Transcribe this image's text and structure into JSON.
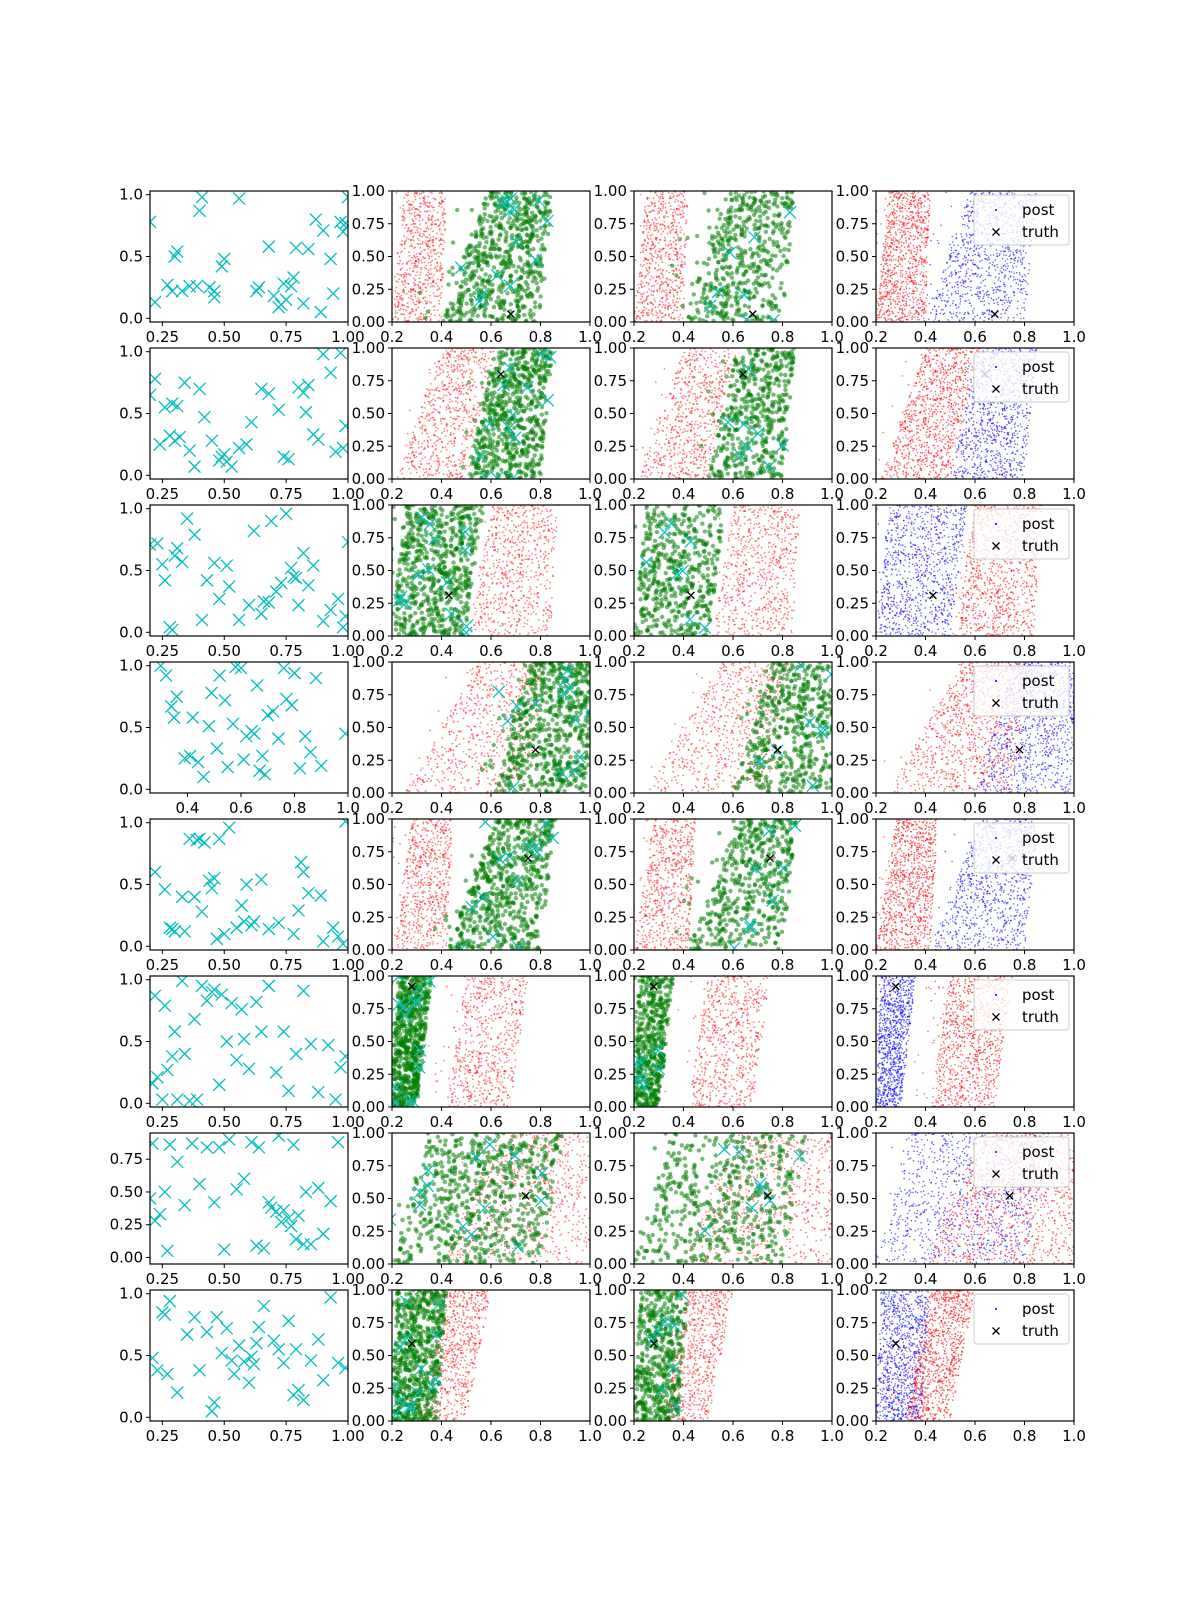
{
  "colors": {
    "cyan": "#00bfbf",
    "green": "#008000",
    "red": "#ff0000",
    "blue": "#0000ff",
    "black": "#000000"
  },
  "legend": {
    "post": "post",
    "truth": "truth"
  },
  "chart_data": {
    "type": "scatter",
    "grid": false,
    "rows": [
      {
        "truth": [
          0.68,
          0.06
        ],
        "samples_x": [
          0.2,
          0.22,
          0.27,
          0.29,
          0.3,
          0.31,
          0.33,
          0.36,
          0.39,
          0.4,
          0.41,
          0.44,
          0.46,
          0.46,
          0.49,
          0.5,
          0.56,
          0.63,
          0.64,
          0.68,
          0.7,
          0.72,
          0.73,
          0.74,
          0.75,
          0.77,
          0.78,
          0.79,
          0.82,
          0.84,
          0.87,
          0.89,
          0.9,
          0.93,
          0.94,
          0.97,
          0.98,
          0.99,
          1.0,
          1.0
        ],
        "samples_y": [
          0.78,
          0.13,
          0.27,
          0.22,
          0.5,
          0.54,
          0.22,
          0.26,
          0.26,
          0.87,
          0.98,
          0.25,
          0.17,
          0.22,
          0.42,
          0.48,
          0.97,
          0.22,
          0.25,
          0.58,
          0.18,
          0.09,
          0.11,
          0.28,
          0.15,
          0.26,
          0.33,
          0.57,
          0.12,
          0.56,
          0.8,
          0.05,
          0.71,
          0.48,
          0.2,
          0.78,
          0.7,
          0.77,
          0.75,
          0.98
        ],
        "band_red": {
          "lo": [
            0.2,
            0.25
          ],
          "hi": [
            0.4,
            0.42
          ],
          "shift": 0.12
        },
        "band_green": {
          "lo": [
            0.4,
            0.58
          ],
          "hi": [
            0.8,
            0.85
          ],
          "shift": 0.15
        },
        "xlim_c1": [
          0.2,
          1.0
        ],
        "xticks_c1": [
          0.25,
          0.5,
          0.75,
          1.0
        ],
        "xticklabels_c1": [
          "0.25",
          "0.50",
          "0.75",
          "1.00"
        ],
        "ylim_c1": [
          -0.03,
          1.03
        ],
        "yticks_c1": [
          0.0,
          0.5,
          1.0
        ],
        "yticklabels_c1": [
          "0.0",
          "0.5",
          "1.0"
        ]
      },
      {
        "truth": [
          0.64,
          0.8
        ],
        "samples_x": [
          0.2,
          0.22,
          0.24,
          0.26,
          0.28,
          0.29,
          0.3,
          0.31,
          0.32,
          0.34,
          0.36,
          0.38,
          0.4,
          0.42,
          0.45,
          0.48,
          0.49,
          0.5,
          0.51,
          0.53,
          0.56,
          0.59,
          0.61,
          0.65,
          0.68,
          0.72,
          0.74,
          0.76,
          0.8,
          0.82,
          0.83,
          0.84,
          0.86,
          0.88,
          0.9,
          0.93,
          0.95,
          0.97,
          0.98,
          0.99
        ],
        "samples_y": [
          0.65,
          0.78,
          0.25,
          0.55,
          0.32,
          0.58,
          0.28,
          0.56,
          0.31,
          0.75,
          0.2,
          0.07,
          0.7,
          0.47,
          0.28,
          0.12,
          0.15,
          0.17,
          0.11,
          0.07,
          0.22,
          0.25,
          0.43,
          0.7,
          0.66,
          0.53,
          0.15,
          0.13,
          0.71,
          0.67,
          0.51,
          0.73,
          0.33,
          0.29,
          0.98,
          0.83,
          0.19,
          0.99,
          0.22,
          0.4
        ],
        "band_red": {
          "lo": [
            0.22,
            0.4
          ],
          "hi": [
            0.5,
            0.62
          ],
          "shift": 0.08
        },
        "band_green": {
          "lo": [
            0.5,
            0.62
          ],
          "hi": [
            0.8,
            0.85
          ],
          "shift": 0.1
        },
        "xlim_c1": [
          0.2,
          1.0
        ],
        "xticks_c1": [
          0.25,
          0.5,
          0.75,
          1.0
        ],
        "xticklabels_c1": [
          "0.25",
          "0.50",
          "0.75",
          "1.00"
        ],
        "ylim_c1": [
          -0.03,
          1.03
        ],
        "yticks_c1": [
          0.0,
          0.5,
          1.0
        ],
        "yticklabels_c1": [
          "0.0",
          "0.5",
          "1.0"
        ]
      },
      {
        "truth": [
          0.43,
          0.31
        ],
        "samples_x": [
          0.2,
          0.23,
          0.25,
          0.26,
          0.28,
          0.29,
          0.3,
          0.31,
          0.33,
          0.35,
          0.38,
          0.41,
          0.43,
          0.46,
          0.48,
          0.51,
          0.52,
          0.56,
          0.6,
          0.62,
          0.65,
          0.66,
          0.68,
          0.69,
          0.71,
          0.73,
          0.75,
          0.77,
          0.78,
          0.79,
          0.8,
          0.82,
          0.84,
          0.86,
          0.9,
          0.93,
          0.96,
          0.98,
          0.99,
          1.0
        ],
        "samples_y": [
          0.71,
          0.72,
          0.55,
          0.42,
          0.04,
          0.02,
          0.62,
          0.68,
          0.57,
          0.92,
          0.79,
          0.1,
          0.42,
          0.56,
          0.27,
          0.54,
          0.37,
          0.1,
          0.22,
          0.82,
          0.15,
          0.25,
          0.24,
          0.9,
          0.33,
          0.4,
          0.96,
          0.52,
          0.45,
          0.44,
          0.22,
          0.64,
          0.38,
          0.54,
          0.09,
          0.18,
          0.27,
          0.04,
          0.13,
          0.73
        ],
        "band_red": {
          "lo": [
            0.52,
            0.6
          ],
          "hi": [
            0.84,
            0.87
          ],
          "shift": 0.12
        },
        "band_green": {
          "lo": [
            0.2,
            0.25
          ],
          "hi": [
            0.5,
            0.57
          ],
          "shift": 0.12
        },
        "xlim_c1": [
          0.2,
          1.0
        ],
        "xticks_c1": [
          0.25,
          0.5,
          0.75,
          1.0
        ],
        "xticklabels_c1": [
          "0.25",
          "0.50",
          "0.75",
          "1.00"
        ],
        "ylim_c1": [
          -0.03,
          1.03
        ],
        "yticks_c1": [
          0.0,
          0.5,
          1.0
        ],
        "yticklabels_c1": [
          "0.0",
          "0.5",
          "1.0"
        ]
      },
      {
        "truth": [
          0.78,
          0.33
        ],
        "samples_x": [
          0.3,
          0.32,
          0.34,
          0.35,
          0.36,
          0.39,
          0.41,
          0.42,
          0.44,
          0.46,
          0.48,
          0.49,
          0.51,
          0.52,
          0.54,
          0.55,
          0.57,
          0.58,
          0.6,
          0.61,
          0.62,
          0.64,
          0.65,
          0.66,
          0.67,
          0.68,
          0.69,
          0.7,
          0.72,
          0.74,
          0.76,
          0.77,
          0.79,
          0.8,
          0.82,
          0.84,
          0.86,
          0.88,
          0.9,
          0.99
        ],
        "samples_y": [
          1.0,
          0.92,
          0.67,
          0.58,
          0.75,
          0.25,
          0.27,
          0.58,
          0.22,
          0.1,
          0.51,
          0.78,
          0.33,
          0.92,
          0.72,
          0.18,
          0.53,
          0.99,
          0.98,
          0.24,
          0.43,
          0.47,
          0.45,
          0.84,
          0.15,
          0.27,
          0.12,
          0.6,
          0.63,
          0.41,
          0.98,
          0.73,
          0.68,
          0.94,
          0.17,
          0.43,
          0.3,
          0.9,
          0.19,
          0.45
        ],
        "band_red": {
          "lo": [
            0.25,
            0.55
          ],
          "hi": [
            0.75,
            0.82
          ],
          "shift": 0.1
        },
        "band_green": {
          "lo": [
            0.6,
            0.76
          ],
          "hi": [
            1.0,
            1.0
          ],
          "shift": 0.1
        },
        "xlim_c1": [
          0.26,
          1.0
        ],
        "xticks_c1": [
          0.4,
          0.6,
          0.8,
          1.0
        ],
        "xticklabels_c1": [
          "0.4",
          "0.6",
          "0.8",
          "1.0"
        ],
        "ylim_c1": [
          -0.03,
          1.03
        ],
        "yticks_c1": [
          0.0,
          0.5,
          1.0
        ],
        "yticklabels_c1": [
          "0.0",
          "0.5",
          "1.0"
        ]
      },
      {
        "truth": [
          0.75,
          0.7
        ],
        "samples_x": [
          0.22,
          0.26,
          0.28,
          0.29,
          0.3,
          0.33,
          0.34,
          0.36,
          0.38,
          0.39,
          0.4,
          0.41,
          0.42,
          0.44,
          0.45,
          0.46,
          0.47,
          0.48,
          0.5,
          0.52,
          0.55,
          0.57,
          0.58,
          0.59,
          0.61,
          0.62,
          0.65,
          0.68,
          0.72,
          0.78,
          0.8,
          0.81,
          0.82,
          0.84,
          0.89,
          0.9,
          0.94,
          0.96,
          0.98,
          0.99
        ],
        "samples_y": [
          0.6,
          0.46,
          0.15,
          0.14,
          0.12,
          0.4,
          0.12,
          0.87,
          0.4,
          0.86,
          0.87,
          0.28,
          0.84,
          0.53,
          0.47,
          0.55,
          0.06,
          0.87,
          0.1,
          0.96,
          0.15,
          0.33,
          0.2,
          0.5,
          0.17,
          0.2,
          0.54,
          0.14,
          0.19,
          0.1,
          0.29,
          0.68,
          0.6,
          0.43,
          0.41,
          0.04,
          0.15,
          0.08,
          0.02,
          1.01
        ],
        "band_red": {
          "lo": [
            0.2,
            0.28
          ],
          "hi": [
            0.42,
            0.45
          ],
          "shift": 0.12
        },
        "band_green": {
          "lo": [
            0.42,
            0.62
          ],
          "hi": [
            0.8,
            0.86
          ],
          "shift": 0.12
        },
        "xlim_c1": [
          0.2,
          1.0
        ],
        "xticks_c1": [
          0.25,
          0.5,
          0.75,
          1.0
        ],
        "xticklabels_c1": [
          "0.25",
          "0.50",
          "0.75",
          "1.00"
        ],
        "ylim_c1": [
          -0.03,
          1.03
        ],
        "yticks_c1": [
          0.0,
          0.5,
          1.0
        ],
        "yticklabels_c1": [
          "0.0",
          "0.5",
          "1.0"
        ]
      },
      {
        "truth": [
          0.28,
          0.92
        ],
        "samples_x": [
          0.21,
          0.22,
          0.23,
          0.25,
          0.26,
          0.27,
          0.29,
          0.3,
          0.31,
          0.33,
          0.34,
          0.36,
          0.38,
          0.39,
          0.41,
          0.43,
          0.45,
          0.46,
          0.48,
          0.49,
          0.51,
          0.53,
          0.55,
          0.57,
          0.58,
          0.6,
          0.63,
          0.65,
          0.68,
          0.71,
          0.74,
          0.76,
          0.79,
          0.82,
          0.85,
          0.88,
          0.92,
          0.95,
          0.97,
          0.99
        ],
        "samples_y": [
          0.16,
          0.87,
          0.21,
          0.03,
          0.79,
          0.27,
          0.38,
          0.58,
          0.03,
          0.99,
          0.4,
          0.02,
          0.68,
          0.03,
          0.95,
          0.83,
          0.9,
          0.92,
          0.15,
          0.88,
          0.5,
          0.81,
          0.35,
          0.76,
          0.52,
          0.28,
          0.82,
          0.58,
          0.95,
          0.25,
          0.58,
          0.1,
          0.4,
          0.91,
          0.48,
          0.09,
          0.47,
          0.03,
          0.29,
          0.38
        ],
        "band_red": {
          "lo": [
            0.42,
            0.5
          ],
          "hi": [
            0.68,
            0.75
          ],
          "shift": 0.15
        },
        "band_green": {
          "lo": [
            0.2,
            0.22
          ],
          "hi": [
            0.3,
            0.36
          ],
          "shift": 0.05
        },
        "xlim_c1": [
          0.2,
          1.0
        ],
        "xticks_c1": [
          0.25,
          0.5,
          0.75,
          1.0
        ],
        "xticklabels_c1": [
          "0.25",
          "0.50",
          "0.75",
          "1.00"
        ],
        "ylim_c1": [
          -0.03,
          1.03
        ],
        "yticks_c1": [
          0.0,
          0.5,
          1.0
        ],
        "yticklabels_c1": [
          "0.0",
          "0.5",
          "1.0"
        ]
      },
      {
        "truth": [
          0.74,
          0.52
        ],
        "samples_x": [
          0.2,
          0.21,
          0.22,
          0.24,
          0.26,
          0.27,
          0.28,
          0.31,
          0.34,
          0.37,
          0.4,
          0.43,
          0.46,
          0.48,
          0.5,
          0.52,
          0.55,
          0.58,
          0.61,
          0.63,
          0.64,
          0.66,
          0.68,
          0.69,
          0.71,
          0.72,
          0.73,
          0.74,
          0.76,
          0.77,
          0.78,
          0.79,
          0.8,
          0.82,
          0.83,
          0.85,
          0.88,
          0.9,
          0.93,
          0.96
        ],
        "samples_y": [
          0.45,
          0.87,
          0.28,
          0.33,
          0.5,
          0.05,
          0.86,
          0.73,
          0.4,
          0.87,
          0.56,
          0.84,
          0.42,
          0.84,
          0.06,
          0.9,
          0.52,
          0.6,
          0.88,
          0.09,
          0.84,
          0.07,
          0.42,
          0.38,
          0.35,
          0.93,
          0.27,
          0.36,
          0.3,
          0.24,
          0.86,
          0.14,
          0.32,
          0.1,
          0.5,
          0.1,
          0.53,
          0.18,
          0.43,
          0.88
        ],
        "band_red": {
          "lo": [
            0.4,
            0.62
          ],
          "hi": [
            1.0,
            1.0
          ],
          "shift": 0.12
        },
        "band_green": {
          "lo": [
            0.2,
            0.35
          ],
          "hi": [
            0.8,
            0.9
          ],
          "shift": 0.1
        },
        "xlim_c1": [
          0.2,
          1.0
        ],
        "xticks_c1": [
          0.25,
          0.5,
          0.75,
          1.0
        ],
        "xticklabels_c1": [
          "0.25",
          "0.50",
          "0.75",
          "1.00"
        ],
        "ylim_c1": [
          -0.05,
          0.95
        ],
        "yticks_c1": [
          0.0,
          0.25,
          0.5,
          0.75
        ],
        "yticklabels_c1": [
          "0.00",
          "0.25",
          "0.50",
          "0.75"
        ]
      },
      {
        "truth": [
          0.28,
          0.59
        ],
        "samples_x": [
          0.21,
          0.23,
          0.25,
          0.26,
          0.27,
          0.28,
          0.31,
          0.35,
          0.38,
          0.4,
          0.43,
          0.45,
          0.46,
          0.47,
          0.49,
          0.51,
          0.53,
          0.54,
          0.56,
          0.58,
          0.6,
          0.61,
          0.62,
          0.63,
          0.64,
          0.66,
          0.7,
          0.72,
          0.74,
          0.76,
          0.78,
          0.79,
          0.8,
          0.82,
          0.85,
          0.88,
          0.9,
          0.93,
          0.96,
          0.99
        ],
        "samples_y": [
          0.48,
          0.38,
          0.85,
          0.83,
          0.35,
          0.94,
          0.2,
          0.67,
          0.81,
          0.38,
          0.69,
          0.05,
          0.12,
          0.81,
          0.52,
          0.72,
          0.46,
          0.35,
          0.58,
          0.45,
          0.28,
          0.49,
          0.43,
          0.6,
          0.73,
          0.9,
          0.62,
          0.55,
          0.44,
          0.78,
          0.18,
          0.55,
          0.22,
          0.14,
          0.46,
          0.63,
          0.3,
          0.97,
          0.44,
          0.4
        ],
        "band_red": {
          "lo": [
            0.32,
            0.42
          ],
          "hi": [
            0.5,
            0.6
          ],
          "shift": 0.12
        },
        "band_green": {
          "lo": [
            0.2,
            0.22
          ],
          "hi": [
            0.38,
            0.42
          ],
          "shift": 0.06
        },
        "xlim_c1": [
          0.2,
          1.0
        ],
        "xticks_c1": [
          0.25,
          0.5,
          0.75,
          1.0
        ],
        "xticklabels_c1": [
          "0.25",
          "0.50",
          "0.75",
          "1.00"
        ],
        "ylim_c1": [
          -0.03,
          1.03
        ],
        "yticks_c1": [
          0.0,
          0.5,
          1.0
        ],
        "yticklabels_c1": [
          "0.0",
          "0.5",
          "1.0"
        ]
      }
    ],
    "posterior_axes": {
      "xlim": [
        0.2,
        1.0
      ],
      "ylim": [
        0.0,
        1.0
      ],
      "xticks": [
        0.2,
        0.4,
        0.6,
        0.8,
        1.0
      ],
      "xticklabels": [
        "0.2",
        "0.4",
        "0.6",
        "0.8",
        "1.0"
      ],
      "yticks": [
        0.0,
        0.25,
        0.5,
        0.75,
        1.0
      ],
      "yticklabels": [
        "0.00",
        "0.25",
        "0.50",
        "0.75",
        "1.00"
      ]
    }
  }
}
